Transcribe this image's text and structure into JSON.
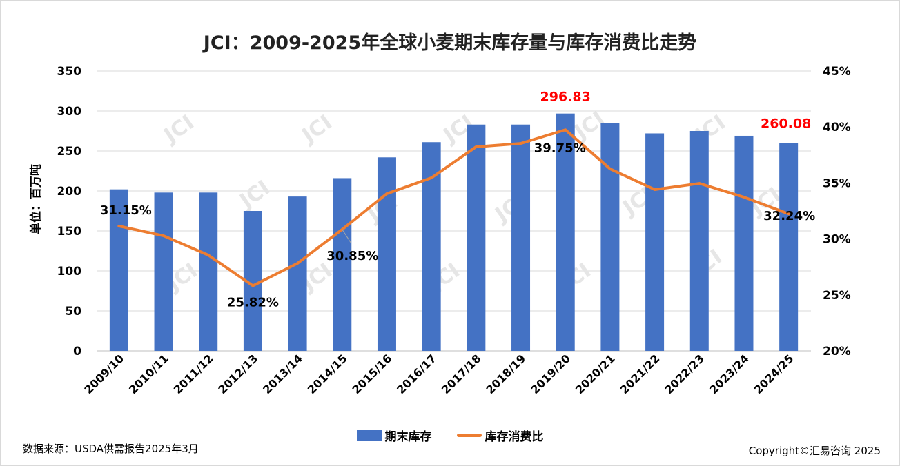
{
  "chart_data": {
    "type": "bar+line",
    "title": "JCI：2009-2025年全球小麦期末库存量与库存消费比走势",
    "ylabel": "单位：百万吨",
    "ylabel_right": "",
    "xlabel": "",
    "categories": [
      "2009/10",
      "2010/11",
      "2011/12",
      "2012/13",
      "2013/14",
      "2014/15",
      "2015/16",
      "2016/17",
      "2017/18",
      "2018/19",
      "2019/20",
      "2020/21",
      "2021/22",
      "2022/23",
      "2023/24",
      "2024/25"
    ],
    "series": [
      {
        "name": "期末库存",
        "type": "bar",
        "axis": "left",
        "color": "#4472c4",
        "values": [
          202,
          198,
          198,
          175,
          193,
          216,
          242,
          261,
          283,
          283,
          296.83,
          285,
          272,
          275,
          269,
          260.08
        ],
        "labels": {
          "10": "296.83",
          "15": "260.08"
        },
        "label_color": "#ff0000"
      },
      {
        "name": "库存消费比",
        "type": "line",
        "axis": "right",
        "color": "#ed7d31",
        "values": [
          31.15,
          30.28,
          28.56,
          25.82,
          27.82,
          30.85,
          34.04,
          35.46,
          38.23,
          38.53,
          39.75,
          36.26,
          34.41,
          34.96,
          33.73,
          32.24
        ],
        "labels": {
          "0": "31.15%",
          "3": "25.82%",
          "5": "30.85%",
          "10": "39.75%",
          "15": "32.24%"
        },
        "label_color": "#000000"
      }
    ],
    "ylim": [
      0,
      350
    ],
    "yticks": [
      "0",
      "50",
      "100",
      "150",
      "200",
      "250",
      "300",
      "350"
    ],
    "ylim_right": [
      20,
      45
    ],
    "yticks_right": [
      "20%",
      "25%",
      "30%",
      "35%",
      "40%",
      "45%"
    ],
    "grid": true,
    "legend_position": "bottom"
  },
  "watermark": "JCI",
  "footer": {
    "source": "数据来源：USDA供需报告2025年3月",
    "copyright": "Copyright©汇易咨询 2025"
  }
}
